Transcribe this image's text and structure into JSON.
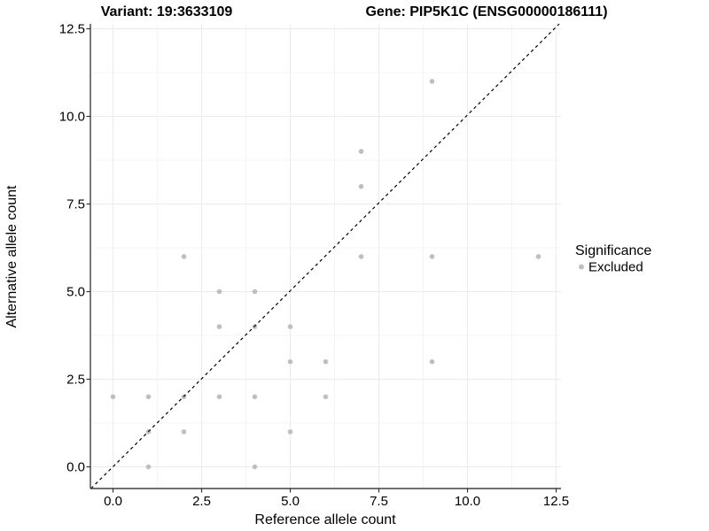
{
  "titles": {
    "variant": "Variant: 19:3633109",
    "gene": "Gene: PIP5K1C (ENSG00000186111)"
  },
  "chart_data": {
    "type": "scatter",
    "title": "Variant: 19:3633109   Gene: PIP5K1C (ENSG00000186111)",
    "xlabel": "Reference allele count",
    "ylabel": "Alternative allele count",
    "xlim": [
      -0.64,
      12.64
    ],
    "ylim": [
      -0.63,
      12.64
    ],
    "x_ticks": [
      0,
      2.5,
      5,
      7.5,
      10,
      12.5
    ],
    "y_ticks": [
      0,
      2.5,
      5,
      7.5,
      10,
      12.5
    ],
    "x_tick_labels": [
      "0.0",
      "2.5",
      "5.0",
      "7.5",
      "10.0",
      "12.5"
    ],
    "y_tick_labels": [
      "0.0",
      "2.5",
      "5.0",
      "7.5",
      "10.0",
      "12.5"
    ],
    "grid": "major+minor",
    "legend_position": "right",
    "series": [
      {
        "name": "Excluded",
        "color": "#bfbfbf",
        "points": [
          [
            0,
            2
          ],
          [
            1,
            0
          ],
          [
            1,
            1
          ],
          [
            1,
            2
          ],
          [
            2,
            1
          ],
          [
            2,
            2
          ],
          [
            2,
            6
          ],
          [
            3,
            2
          ],
          [
            3,
            4
          ],
          [
            3,
            5
          ],
          [
            4,
            0
          ],
          [
            4,
            2
          ],
          [
            4,
            4
          ],
          [
            4,
            5
          ],
          [
            5,
            1
          ],
          [
            5,
            3
          ],
          [
            5,
            4
          ],
          [
            6,
            2
          ],
          [
            6,
            3
          ],
          [
            7,
            6
          ],
          [
            7,
            8
          ],
          [
            7,
            9
          ],
          [
            9,
            3
          ],
          [
            9,
            6
          ],
          [
            9,
            11
          ],
          [
            12,
            6
          ]
        ]
      }
    ],
    "reference_line": {
      "type": "identity-diagonal",
      "style": "dashed",
      "color": "#000000"
    }
  },
  "legend": {
    "title": "Significance",
    "items": [
      {
        "label": "Excluded",
        "color": "#bfbfbf"
      }
    ]
  },
  "colors": {
    "point": "#bfbfbf",
    "grid_major": "#ebebeb",
    "grid_minor": "#f4f4f4",
    "axis_line": "#404040",
    "tick_mark": "#333333",
    "text": "#000000",
    "background": "#ffffff",
    "diagonal": "#000000"
  }
}
